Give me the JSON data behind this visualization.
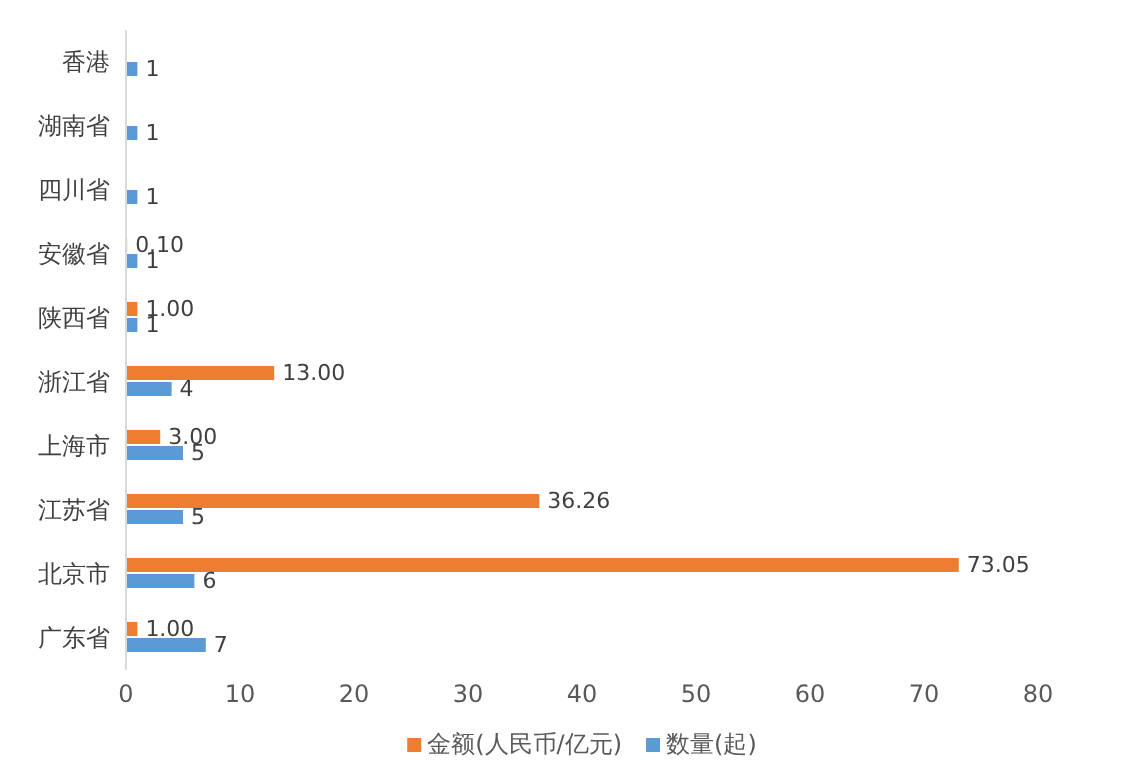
{
  "chart_data": {
    "type": "bar",
    "orientation": "horizontal",
    "categories": [
      "香港",
      "湖南省",
      "四川省",
      "安徽省",
      "陕西省",
      "浙江省",
      "上海市",
      "江苏省",
      "北京市",
      "广东省"
    ],
    "series": [
      {
        "name": "金额(人民币/亿元)",
        "color": "#ed7d31",
        "values": [
          null,
          null,
          null,
          0.1,
          1.0,
          13.0,
          3.0,
          36.26,
          73.05,
          1.0
        ],
        "value_labels": [
          null,
          null,
          null,
          "0.10",
          "1.00",
          "13.00",
          "3.00",
          "36.26",
          "73.05",
          "1.00"
        ]
      },
      {
        "name": "数量(起)",
        "color": "#5b9bd5",
        "values": [
          1,
          1,
          1,
          1,
          1,
          4,
          5,
          5,
          6,
          7
        ],
        "value_labels": [
          "1",
          "1",
          "1",
          "1",
          "1",
          "4",
          "5",
          "5",
          "6",
          "7"
        ]
      }
    ],
    "xlim": [
      0,
      80
    ],
    "xticks": [
      0,
      10,
      20,
      30,
      40,
      50,
      60,
      70,
      80
    ],
    "grid": false,
    "legend": "bottom"
  }
}
